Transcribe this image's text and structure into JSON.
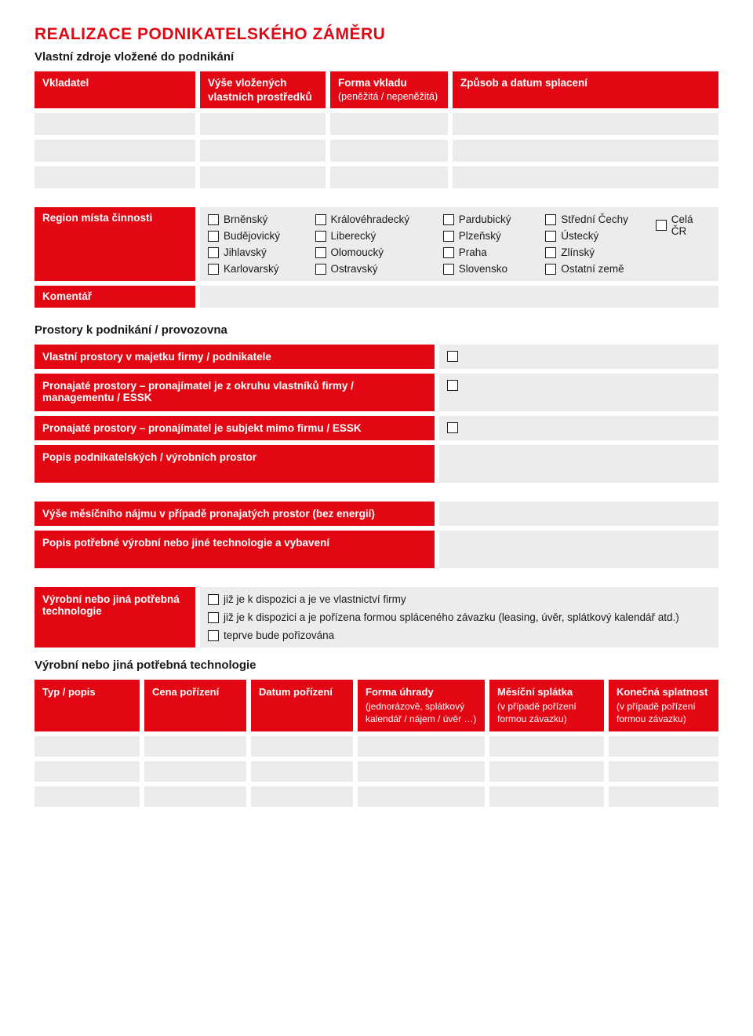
{
  "colors": {
    "primary": "#e30613",
    "grey": "#ececec",
    "text": "#1a1a1a",
    "bg": "#ffffff"
  },
  "typography": {
    "title_fontsize": 21,
    "body_fontsize": 13.5,
    "section_fontsize": 15,
    "font_family": "Arial"
  },
  "title": "REALIZACE PODNIKATELSKÉHO ZÁMĚRU",
  "subtitle": "Vlastní zdroje vložené do podnikání",
  "table1": {
    "headers": {
      "vkladatel": "Vkladatel",
      "vyse": "Výše vložených vlastních prostředků",
      "forma_main": "Forma vkladu",
      "forma_sub": "(peněžitá / nepeněžitá)",
      "zpusob": "Způsob a datum splacení"
    },
    "row_count": 3
  },
  "region": {
    "label": "Region místa činnosti",
    "columns": [
      [
        "Brněnský",
        "Budějovický",
        "Jihlavský",
        "Karlovarský"
      ],
      [
        "Královéhradecký",
        "Liberecký",
        "Olomoucký",
        "Ostravský"
      ],
      [
        "Pardubický",
        "Plzeňský",
        "Praha",
        "Slovensko"
      ],
      [
        "Střední Čechy",
        "Ústecký",
        "Zlínský",
        "Ostatní země"
      ],
      [
        "Celá ČR"
      ]
    ]
  },
  "komentar_label": "Komentář",
  "prostory": {
    "heading": "Prostory k podnikání / provozovna",
    "rows": [
      {
        "label": "Vlastní prostory v majetku firmy / podnikatele",
        "checkbox": true,
        "tall": false
      },
      {
        "label": "Pronajaté prostory – pronajímatel je z okruhu vlastníků firmy / managementu / ESSK",
        "checkbox": true,
        "tall": true
      },
      {
        "label": "Pronajaté prostory – pronajímatel je subjekt mimo firmu / ESSK",
        "checkbox": true,
        "tall": false
      },
      {
        "label": "Popis podnikatelských / výrobních prostor",
        "checkbox": false,
        "tall": true
      },
      {
        "label": "Výše měsíčního nájmu v případě pronajatých prostor (bez energií)",
        "checkbox": false,
        "tall": false
      },
      {
        "label": "Popis potřebné výrobní nebo jiné technologie a vybavení",
        "checkbox": false,
        "tall": true
      }
    ]
  },
  "tech": {
    "label": "Výrobní nebo jiná potřebná technologie",
    "options": [
      "již je k dispozici a je ve vlastnictví firmy",
      "již je k dispozici a je pořízena formou spláceného závazku (leasing, úvěr, splátkový kalendář atd.)",
      "teprve bude pořizována"
    ]
  },
  "table2": {
    "heading": "Výrobní nebo jiná potřebná technologie",
    "headers": [
      {
        "main": "Typ / popis",
        "sub": ""
      },
      {
        "main": "Cena pořízení",
        "sub": ""
      },
      {
        "main": "Datum pořízení",
        "sub": ""
      },
      {
        "main": "Forma úhrady",
        "sub": "(jednorázově, splátkový kalendář / nájem / úvěr …)"
      },
      {
        "main": "Měsíční splátka",
        "sub": "(v případě pořízení formou závazku)"
      },
      {
        "main": "Konečná splatnost",
        "sub": "(v případě pořízení formou závazku)"
      }
    ],
    "row_count": 3
  }
}
